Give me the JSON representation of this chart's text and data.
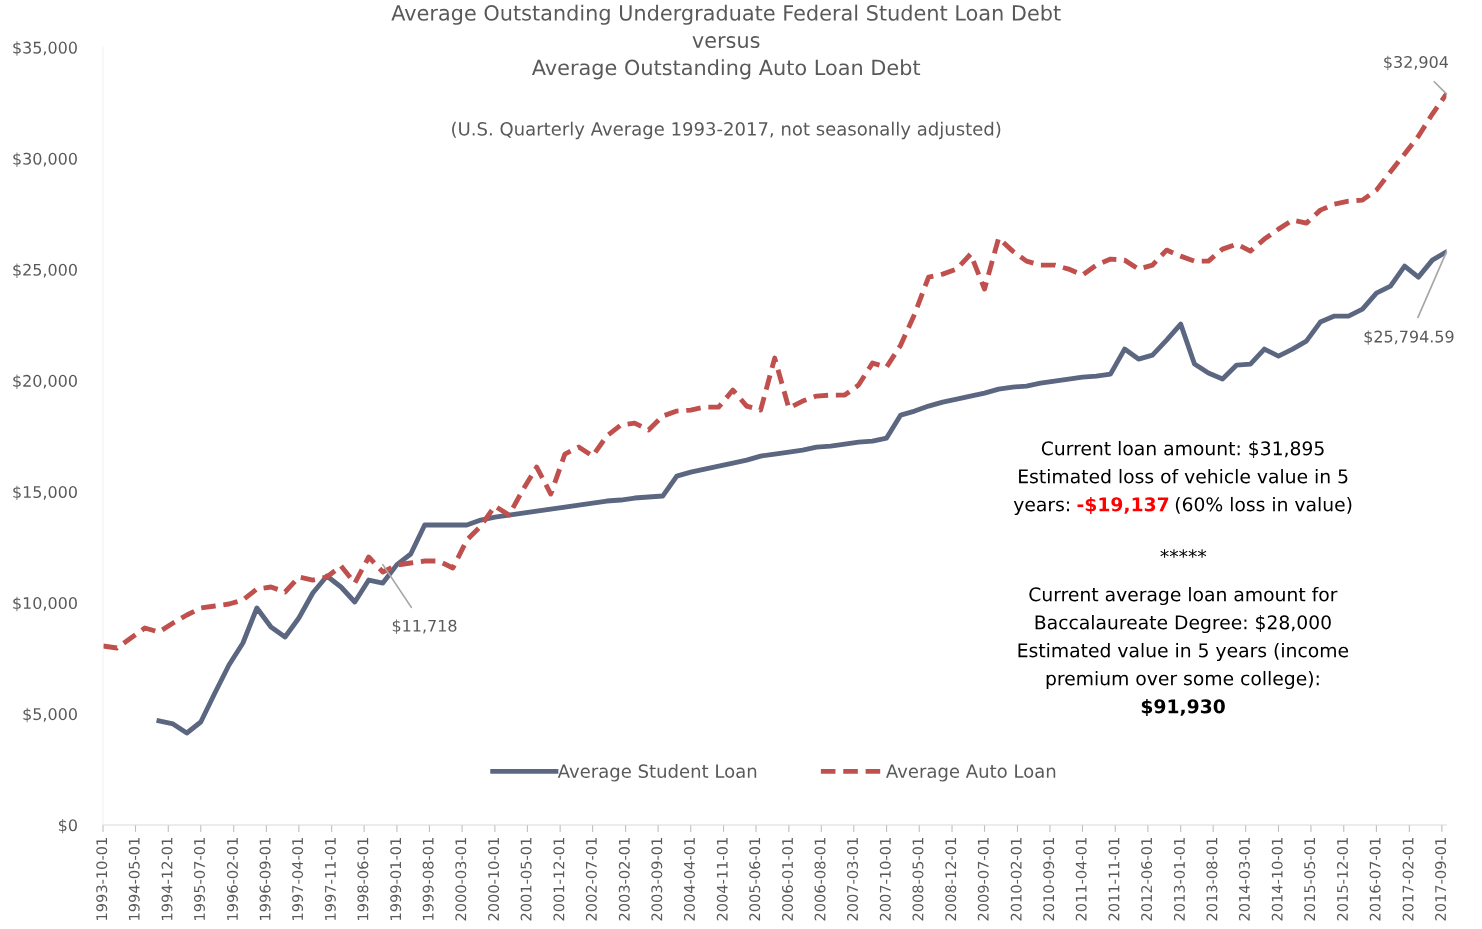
{
  "chart_data": {
    "type": "line",
    "title": "Average Outstanding Undergraduate Federal Student Loan Debt\nversus\nAverage Outstanding Auto Loan Debt",
    "subtitle": "(U.S. Quarterly Average 1993-2017, not seasonally adjusted)",
    "x": [
      "1993-10-01",
      "1994-01-01",
      "1994-04-01",
      "1994-07-01",
      "1994-10-01",
      "1995-01-01",
      "1995-04-01",
      "1995-07-01",
      "1995-10-01",
      "1996-01-01",
      "1996-04-01",
      "1996-07-01",
      "1996-10-01",
      "1997-01-01",
      "1997-04-01",
      "1997-07-01",
      "1997-10-01",
      "1998-01-01",
      "1998-04-01",
      "1998-07-01",
      "1998-10-01",
      "1999-01-01",
      "1999-04-01",
      "1999-07-01",
      "1999-10-01",
      "2000-01-01",
      "2000-04-01",
      "2000-07-01",
      "2000-10-01",
      "2001-01-01",
      "2001-04-01",
      "2001-07-01",
      "2001-10-01",
      "2002-01-01",
      "2002-04-01",
      "2002-07-01",
      "2002-10-01",
      "2003-01-01",
      "2003-04-01",
      "2003-07-01",
      "2003-10-01",
      "2004-01-01",
      "2004-04-01",
      "2004-07-01",
      "2004-10-01",
      "2005-01-01",
      "2005-04-01",
      "2005-07-01",
      "2005-10-01",
      "2006-01-01",
      "2006-04-01",
      "2006-07-01",
      "2006-10-01",
      "2007-01-01",
      "2007-04-01",
      "2007-07-01",
      "2007-10-01",
      "2008-01-01",
      "2008-04-01",
      "2008-07-01",
      "2008-10-01",
      "2009-01-01",
      "2009-04-01",
      "2009-07-01",
      "2009-10-01",
      "2010-01-01",
      "2010-04-01",
      "2010-07-01",
      "2010-10-01",
      "2011-01-01",
      "2011-04-01",
      "2011-07-01",
      "2011-10-01",
      "2012-01-01",
      "2012-04-01",
      "2012-07-01",
      "2012-10-01",
      "2013-01-01",
      "2013-04-01",
      "2013-07-01",
      "2013-10-01",
      "2014-01-01",
      "2014-04-01",
      "2014-07-01",
      "2014-10-01",
      "2015-01-01",
      "2015-04-01",
      "2015-07-01",
      "2015-10-01",
      "2016-01-01",
      "2016-04-01",
      "2016-07-01",
      "2016-10-01",
      "2017-01-01",
      "2017-04-01",
      "2017-07-01",
      "2017-10-01"
    ],
    "series": [
      {
        "name": "Average Student Loan",
        "color": "#5b6680",
        "line_style": "solid",
        "values": [
          null,
          null,
          null,
          null,
          4680,
          4545,
          4140,
          4635,
          5940,
          7200,
          8190,
          9765,
          8910,
          8460,
          9315,
          10440,
          11205,
          10710,
          10035,
          11025,
          10890,
          11718,
          12195,
          13500,
          13500,
          13500,
          13500,
          13725,
          13860,
          13950,
          14040,
          14130,
          14220,
          14310,
          14400,
          14490,
          14580,
          14625,
          14715,
          14760,
          14805,
          15705,
          15885,
          16020,
          16155,
          16290,
          16425,
          16605,
          16695,
          16785,
          16875,
          17010,
          17055,
          17145,
          17235,
          17280,
          17415,
          18450,
          18630,
          18855,
          19035,
          19170,
          19305,
          19440,
          19620,
          19710,
          19755,
          19890,
          19980,
          20070,
          20160,
          20205,
          20295,
          21420,
          20970,
          21150,
          21825,
          22545,
          20745,
          20340,
          20070,
          20700,
          20745,
          21420,
          21105,
          21420,
          21780,
          22635,
          22905,
          22905,
          23220,
          23940,
          24255,
          25155,
          24660,
          25425,
          25794.59
        ]
      },
      {
        "name": "Average Auto Loan",
        "color": "#c0504d",
        "line_style": "dashed",
        "values": [
          8055,
          7965,
          8415,
          8865,
          8685,
          9090,
          9450,
          9765,
          9855,
          9945,
          10125,
          10620,
          10710,
          10485,
          11160,
          11025,
          11160,
          11655,
          10890,
          12060,
          11385,
          11700,
          11790,
          11880,
          11880,
          11565,
          12825,
          13455,
          14355,
          13950,
          15075,
          16110,
          14895,
          16695,
          17010,
          16605,
          17505,
          18000,
          18090,
          17775,
          18405,
          18630,
          18675,
          18810,
          18810,
          19575,
          18855,
          18675,
          21015,
          18765,
          19080,
          19305,
          19350,
          19350,
          19800,
          20790,
          20610,
          21600,
          23000,
          24660,
          24795,
          25020,
          25695,
          24120,
          26415,
          25830,
          25380,
          25200,
          25200,
          25020,
          24750,
          25200,
          25470,
          25425,
          25020,
          25200,
          25875,
          25605,
          25380,
          25380,
          25920,
          26145,
          25830,
          26370,
          26820,
          27225,
          27090,
          27675,
          27945,
          28080,
          28125,
          28575,
          29400,
          30200,
          31000,
          32000,
          32904
        ]
      }
    ],
    "xlim": [
      "1993-10-01",
      "2017-10-01"
    ],
    "xticks": [
      "1993-10-01",
      "1994-05-01",
      "1994-12-01",
      "1995-07-01",
      "1996-02-01",
      "1996-09-01",
      "1997-04-01",
      "1997-11-01",
      "1998-06-01",
      "1999-01-01",
      "1999-08-01",
      "2000-03-01",
      "2000-10-01",
      "2001-05-01",
      "2001-12-01",
      "2002-07-01",
      "2003-02-01",
      "2003-09-01",
      "2004-04-01",
      "2004-11-01",
      "2005-06-01",
      "2006-01-01",
      "2006-08-01",
      "2007-03-01",
      "2007-10-01",
      "2008-05-01",
      "2008-12-01",
      "2009-07-01",
      "2010-02-01",
      "2010-09-01",
      "2011-04-01",
      "2011-11-01",
      "2012-06-01",
      "2013-01-01",
      "2013-08-01",
      "2014-03-01",
      "2014-10-01",
      "2015-05-01",
      "2015-12-01",
      "2016-07-01",
      "2017-02-01",
      "2017-09-01"
    ],
    "ylim": [
      0,
      35000
    ],
    "yticks": [
      {
        "value": 0,
        "label": "$0"
      },
      {
        "value": 5000,
        "label": "$5,000"
      },
      {
        "value": 10000,
        "label": "$10,000"
      },
      {
        "value": 15000,
        "label": "$15,000"
      },
      {
        "value": 20000,
        "label": "$20,000"
      },
      {
        "value": 25000,
        "label": "$25,000"
      },
      {
        "value": 30000,
        "label": "$30,000"
      },
      {
        "value": 35000,
        "label": "$35,000"
      }
    ],
    "grid": false,
    "legend": "bottom",
    "marker": "none",
    "annotations": [
      {
        "text": "$11,718",
        "x": "1998-10-01",
        "y": 11718
      },
      {
        "text": "$32,904",
        "x": "2017-10-01",
        "y": 32904
      },
      {
        "text": "$25,794.59",
        "x": "2017-10-01",
        "y": 25794.59
      },
      "Current loan amount: $31,895",
      "Estimated loss of vehicle value in 5",
      "years:",
      "-$19,137",
      "(60% loss in value)",
      "*****",
      "Current average loan amount for",
      "Baccalaureate Degree: $28,000",
      "Estimated value in 5 years (income",
      "premium over some college):",
      "$91,930"
    ]
  }
}
